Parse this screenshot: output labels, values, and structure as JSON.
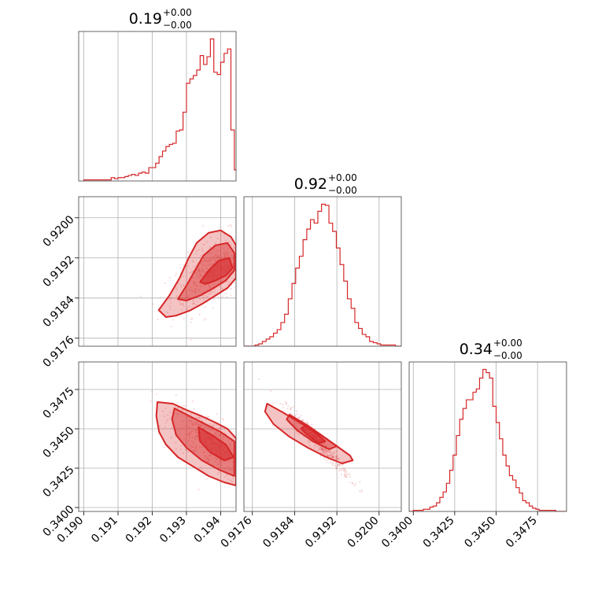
{
  "chart_data": {
    "type": "corner",
    "color": "#d62728",
    "titles": [
      {
        "value": "0.19",
        "plus": "+0.00",
        "minus": "−0.00"
      },
      {
        "value": "0.92",
        "plus": "+0.00",
        "minus": "−0.00"
      },
      {
        "value": "0.34",
        "plus": "+0.00",
        "minus": "−0.00"
      }
    ],
    "ranges": [
      [
        0.18985,
        0.19445
      ],
      [
        0.91744,
        0.92042
      ],
      [
        0.33975,
        0.34925
      ]
    ],
    "ticks": [
      [
        "0.190",
        "0.191",
        "0.192",
        "0.193",
        "0.194"
      ],
      [
        "0.9176",
        "0.9184",
        "0.9192",
        "0.9200"
      ],
      [
        "0.3400",
        "0.3425",
        "0.3450",
        "0.3475"
      ]
    ],
    "histograms": [
      {
        "bins": [
          0.19,
          0.1901,
          0.1902,
          0.1903,
          0.1904,
          0.1905,
          0.1906,
          0.1907,
          0.1908,
          0.1909,
          0.191,
          0.1911,
          0.1912,
          0.1913,
          0.1914,
          0.1915,
          0.1916,
          0.1917,
          0.1918,
          0.1919,
          0.192,
          0.1921,
          0.1922,
          0.1923,
          0.1924,
          0.1925,
          0.1926,
          0.1927,
          0.1928,
          0.1929,
          0.193,
          0.1931,
          0.1932,
          0.1933,
          0.1934,
          0.1935,
          0.1936,
          0.1937,
          0.1938,
          0.1939,
          0.194,
          0.1941,
          0.1942,
          0.1943,
          0.1944
        ],
        "counts": [
          1,
          1,
          1,
          1,
          1,
          1,
          1,
          1,
          3,
          2,
          3,
          3,
          4,
          5,
          6,
          5,
          7,
          8,
          7,
          12,
          12,
          16,
          22,
          27,
          31,
          33,
          34,
          45,
          46,
          62,
          88,
          92,
          95,
          100,
          113,
          105,
          112,
          128,
          98,
          96,
          107,
          115,
          119,
          46,
          10
        ]
      },
      {
        "bins": [
          0.91744,
          0.91751,
          0.91758,
          0.91765,
          0.91772,
          0.91779,
          0.91786,
          0.91793,
          0.918,
          0.91807,
          0.91814,
          0.91821,
          0.91828,
          0.91835,
          0.91842,
          0.91849,
          0.91856,
          0.91863,
          0.9187,
          0.91877,
          0.91884,
          0.91891,
          0.91898,
          0.91905,
          0.91912,
          0.91919,
          0.91926,
          0.91933,
          0.9194,
          0.91947,
          0.91954,
          0.91961,
          0.91968,
          0.91975,
          0.91982,
          0.91989,
          0.91996,
          0.92003,
          0.9201,
          0.92017,
          0.92024,
          0.92031,
          0.92038
        ],
        "counts": [
          0,
          0,
          0,
          1,
          2,
          4,
          6,
          8,
          11,
          14,
          20,
          27,
          40,
          53,
          66,
          76,
          90,
          99,
          107,
          104,
          114,
          120,
          119,
          104,
          97,
          83,
          69,
          55,
          40,
          32,
          20,
          15,
          10,
          8,
          4,
          3,
          2,
          1,
          1,
          1,
          1,
          0,
          0
        ]
      },
      {
        "bins": [
          0.33975,
          0.34,
          0.3402,
          0.3404,
          0.3406,
          0.3408,
          0.341,
          0.3412,
          0.3414,
          0.3416,
          0.3418,
          0.342,
          0.3422,
          0.3424,
          0.3426,
          0.3428,
          0.343,
          0.3432,
          0.3434,
          0.3436,
          0.3438,
          0.344,
          0.3442,
          0.3444,
          0.3446,
          0.3448,
          0.345,
          0.3452,
          0.3454,
          0.3456,
          0.3458,
          0.346,
          0.3462,
          0.3464,
          0.3466,
          0.3468,
          0.347,
          0.3472,
          0.3474,
          0.3476,
          0.3478,
          0.348,
          0.3482,
          0.3484,
          0.3486,
          0.3488,
          0.349
        ],
        "counts": [
          0,
          1,
          1,
          1,
          2,
          2,
          4,
          5,
          8,
          13,
          18,
          26,
          38,
          52,
          70,
          85,
          95,
          103,
          103,
          110,
          113,
          123,
          131,
          128,
          123,
          97,
          82,
          67,
          52,
          42,
          33,
          29,
          22,
          17,
          10,
          8,
          5,
          3,
          2,
          1,
          1,
          1,
          1,
          1,
          0,
          0,
          0
        ]
      }
    ],
    "contours": [
      {
        "x_var": 0,
        "y_var": 1,
        "center": [
          0.19375,
          0.9189
        ],
        "levels": [
          [
            [
              0.19219,
              0.91816
            ],
            [
              0.1925,
              0.91845
            ],
            [
              0.1928,
              0.9188
            ],
            [
              0.19305,
              0.91918
            ],
            [
              0.1933,
              0.9195
            ],
            [
              0.19365,
              0.9197
            ],
            [
              0.194,
              0.91975
            ],
            [
              0.1943,
              0.91962
            ],
            [
              0.19445,
              0.91945
            ],
            [
              0.19445,
              0.9188
            ],
            [
              0.1942,
              0.9186
            ],
            [
              0.19385,
              0.91845
            ],
            [
              0.1935,
              0.9183
            ],
            [
              0.1931,
              0.91815
            ],
            [
              0.1927,
              0.91805
            ],
            [
              0.1924,
              0.91802
            ]
          ],
          [
            [
              0.19275,
              0.91838
            ],
            [
              0.193,
              0.91865
            ],
            [
              0.19325,
              0.91895
            ],
            [
              0.1935,
              0.91925
            ],
            [
              0.19385,
              0.91945
            ],
            [
              0.1942,
              0.9195
            ],
            [
              0.1944,
              0.9193
            ],
            [
              0.1944,
              0.91895
            ],
            [
              0.19415,
              0.91875
            ],
            [
              0.1938,
              0.9186
            ],
            [
              0.1934,
              0.91845
            ],
            [
              0.193,
              0.91835
            ]
          ],
          [
            [
              0.1934,
              0.91872
            ],
            [
              0.19365,
              0.91895
            ],
            [
              0.19395,
              0.91915
            ],
            [
              0.19425,
              0.9192
            ],
            [
              0.19435,
              0.919
            ],
            [
              0.19415,
              0.91885
            ],
            [
              0.19385,
              0.91875
            ],
            [
              0.19355,
              0.91868
            ]
          ]
        ]
      },
      {
        "x_var": 0,
        "y_var": 2,
        "center": [
          0.1937,
          0.3441
        ],
        "levels": [
          [
            [
              0.19215,
              0.3467
            ],
            [
              0.1926,
              0.3466
            ],
            [
              0.193,
              0.3462
            ],
            [
              0.19345,
              0.3458
            ],
            [
              0.19385,
              0.3454
            ],
            [
              0.1942,
              0.345
            ],
            [
              0.19445,
              0.3444
            ],
            [
              0.19445,
              0.3414
            ],
            [
              0.1941,
              0.3416
            ],
            [
              0.19365,
              0.342
            ],
            [
              0.1932,
              0.3426
            ],
            [
              0.19275,
              0.3432
            ],
            [
              0.1924,
              0.344
            ],
            [
              0.1922,
              0.3448
            ],
            [
              0.19212,
              0.3458
            ]
          ],
          [
            [
              0.19265,
              0.3463
            ],
            [
              0.1931,
              0.3458
            ],
            [
              0.19355,
              0.3453
            ],
            [
              0.194,
              0.3448
            ],
            [
              0.1944,
              0.3442
            ],
            [
              0.1944,
              0.342
            ],
            [
              0.19395,
              0.3424
            ],
            [
              0.19345,
              0.343
            ],
            [
              0.193,
              0.3438
            ],
            [
              0.1927,
              0.3446
            ],
            [
              0.19258,
              0.3456
            ]
          ],
          [
            [
              0.19335,
              0.3451
            ],
            [
              0.19375,
              0.3446
            ],
            [
              0.19415,
              0.344
            ],
            [
              0.19438,
              0.3432
            ],
            [
              0.1941,
              0.343
            ],
            [
              0.1937,
              0.3435
            ],
            [
              0.1934,
              0.3442
            ]
          ]
        ]
      },
      {
        "x_var": 1,
        "y_var": 2,
        "center": [
          0.91885,
          0.3441
        ],
        "levels": [
          [
            [
              0.91788,
              0.3466
            ],
            [
              0.9182,
              0.346
            ],
            [
              0.91855,
              0.3453
            ],
            [
              0.9189,
              0.3446
            ],
            [
              0.9192,
              0.3439
            ],
            [
              0.91945,
              0.3433
            ],
            [
              0.9195,
              0.343
            ],
            [
              0.9193,
              0.3428
            ],
            [
              0.919,
              0.3432
            ],
            [
              0.91865,
              0.3438
            ],
            [
              0.9183,
              0.3445
            ],
            [
              0.918,
              0.3453
            ],
            [
              0.91784,
              0.3461
            ]
          ],
          [
            [
              0.9183,
              0.3459
            ],
            [
              0.91865,
              0.3452
            ],
            [
              0.91895,
              0.3445
            ],
            [
              0.9192,
              0.3439
            ],
            [
              0.91905,
              0.3437
            ],
            [
              0.91875,
              0.3442
            ],
            [
              0.91845,
              0.3449
            ],
            [
              0.91825,
              0.3456
            ]
          ],
          [
            [
              0.9186,
              0.3452
            ],
            [
              0.91885,
              0.3446
            ],
            [
              0.91898,
              0.3442
            ],
            [
              0.91885,
              0.3441
            ],
            [
              0.91865,
              0.3446
            ],
            [
              0.91852,
              0.345
            ]
          ]
        ]
      }
    ],
    "scatter_spread": [
      {
        "x_var": 0,
        "y_var": 1,
        "sx": 0.0006,
        "sy": 0.0004,
        "rho": 0.6
      },
      {
        "x_var": 0,
        "y_var": 2,
        "sx": 0.0006,
        "sy": 0.0012,
        "rho": -0.7
      },
      {
        "x_var": 1,
        "y_var": 2,
        "sx": 0.0003,
        "sy": 0.0011,
        "rho": -0.97
      }
    ]
  }
}
